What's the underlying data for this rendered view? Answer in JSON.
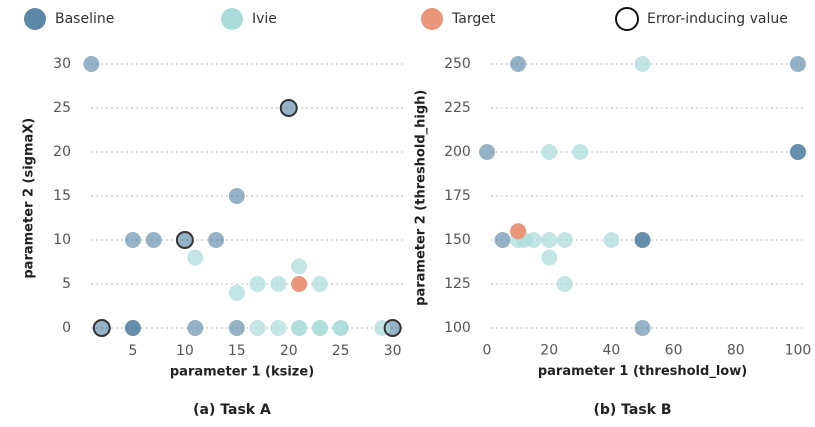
{
  "chart_data": [
    {
      "type": "scatter",
      "title": "(a) Task A",
      "xlabel": "parameter 1 (ksize)",
      "ylabel": "parameter 2 (sigmaX)",
      "xlim": [
        0,
        31
      ],
      "ylim": [
        -1.5,
        31
      ],
      "xticks": [
        5,
        10,
        15,
        20,
        25,
        30
      ],
      "yticks": [
        0,
        5,
        10,
        15,
        20,
        25,
        30
      ],
      "grid": true,
      "series": [
        {
          "name": "Baseline",
          "color": "#3f7399",
          "opacity": 0.55,
          "style": "filled",
          "x": [
            1,
            5,
            7,
            10,
            13,
            15,
            20,
            2,
            5,
            5,
            11,
            15,
            30
          ],
          "y": [
            30,
            10,
            10,
            10,
            10,
            15,
            25,
            0,
            0,
            0,
            0,
            0,
            0
          ]
        },
        {
          "name": "Ivie",
          "color": "#a9dcd9",
          "opacity": 0.7,
          "style": "filled",
          "x": [
            11,
            15,
            17,
            19,
            21,
            23,
            17,
            19,
            21,
            23,
            25,
            29,
            21,
            23,
            25
          ],
          "y": [
            8,
            4,
            5,
            5,
            7,
            5,
            0,
            0,
            0,
            0,
            0,
            0,
            0,
            0,
            0
          ]
        },
        {
          "name": "Target",
          "color": "#e8977b",
          "opacity": 1,
          "style": "filled",
          "x": [
            21
          ],
          "y": [
            5
          ]
        },
        {
          "name": "Error-inducing value",
          "color": "#333333",
          "opacity": 1,
          "style": "outline",
          "x": [
            2,
            10,
            20,
            30
          ],
          "y": [
            0,
            10,
            25,
            0
          ]
        }
      ]
    },
    {
      "type": "scatter",
      "title": "(b) Task B",
      "xlabel": "parameter 1 (threshold_low)",
      "ylabel": "parameter 2 (threshold_high)",
      "xlim": [
        -2,
        102
      ],
      "ylim": [
        93,
        255
      ],
      "xticks": [
        0,
        20,
        40,
        60,
        80,
        100
      ],
      "yticks": [
        100,
        125,
        150,
        175,
        200,
        225,
        250
      ],
      "grid": true,
      "series": [
        {
          "name": "Baseline",
          "color": "#3f7399",
          "opacity": 0.55,
          "style": "filled",
          "x": [
            0,
            10,
            100,
            100,
            100,
            5,
            50,
            50,
            50
          ],
          "y": [
            200,
            250,
            250,
            200,
            200,
            150,
            150,
            150,
            100
          ]
        },
        {
          "name": "Ivie",
          "color": "#a9dcd9",
          "opacity": 0.7,
          "style": "filled",
          "x": [
            50,
            20,
            30,
            10,
            15,
            20,
            25,
            40,
            20,
            25,
            12
          ],
          "y": [
            250,
            200,
            200,
            150,
            150,
            150,
            150,
            150,
            140,
            125,
            150
          ]
        },
        {
          "name": "Target",
          "color": "#e8977b",
          "opacity": 1,
          "style": "filled",
          "x": [
            10
          ],
          "y": [
            155
          ]
        }
      ]
    }
  ]
}
